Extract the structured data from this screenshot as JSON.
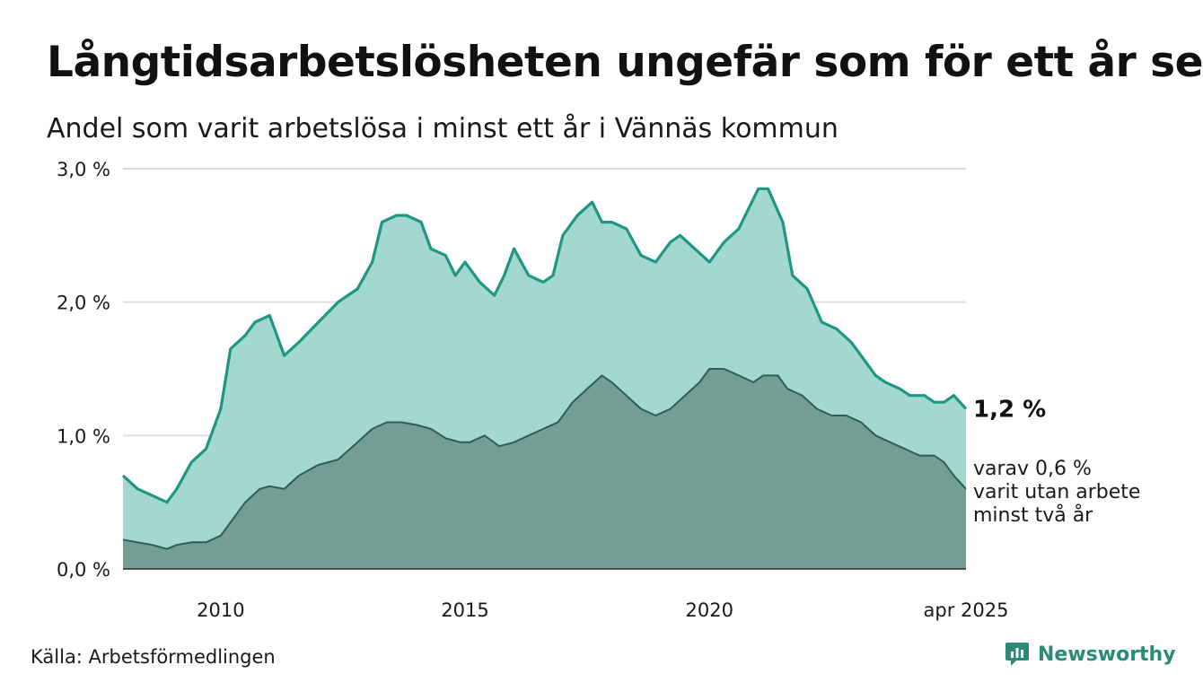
{
  "title": "Långtidsarbetslösheten ungefär som för ett år sen",
  "subtitle": "Andel som varit arbetslösa i minst ett år i Vännäs kommun",
  "source": "Källa: Arbetsförmedlingen",
  "brand": "Newsworthy",
  "brand_icon": "bar-chart-speech-bubble-icon",
  "colors": {
    "series1_line": "#1f9683",
    "series1_fill": "#a3d8d0",
    "series2_line": "#2e5e54",
    "series2_fill": "#729e96",
    "grid": "#dddddd",
    "brand": "#2d8a78"
  },
  "chart_data": {
    "type": "area",
    "ylim": [
      0,
      3.0
    ],
    "yticks": [
      {
        "value": 0,
        "label": "0,0 %"
      },
      {
        "value": 1,
        "label": "1,0 %"
      },
      {
        "value": 2,
        "label": "2,0 %"
      },
      {
        "value": 3,
        "label": "3,0 %"
      }
    ],
    "xlim": [
      2008.0,
      2025.25
    ],
    "xticks": [
      {
        "value": 2010,
        "label": "2010"
      },
      {
        "value": 2015,
        "label": "2015"
      },
      {
        "value": 2020,
        "label": "2020"
      },
      {
        "value": 2025.25,
        "label": "apr 2025"
      }
    ],
    "grid": true,
    "end_labels": {
      "series1": "1,2 %",
      "series2": [
        "varav 0,6 %",
        "varit utan arbete",
        "minst två år"
      ]
    },
    "series": [
      {
        "x": [
          2008.0,
          2008.3,
          2008.6,
          2008.9,
          2009.1,
          2009.4,
          2009.7,
          2010.0,
          2010.2,
          2010.5,
          2010.7,
          2011.0,
          2011.3,
          2011.6,
          2012.0,
          2012.4,
          2012.8,
          2013.1,
          2013.3,
          2013.6,
          2013.8,
          2014.1,
          2014.3,
          2014.6,
          2014.8,
          2015.0,
          2015.3,
          2015.6,
          2015.8,
          2016.0,
          2016.3,
          2016.6,
          2016.8,
          2017.0,
          2017.3,
          2017.6,
          2017.8,
          2018.0,
          2018.3,
          2018.6,
          2018.9,
          2019.2,
          2019.4,
          2019.7,
          2020.0,
          2020.3,
          2020.6,
          2020.8,
          2021.0,
          2021.2,
          2021.5,
          2021.7,
          2022.0,
          2022.3,
          2022.6,
          2022.9,
          2023.1,
          2023.4,
          2023.6,
          2023.9,
          2024.1,
          2024.4,
          2024.6,
          2024.8,
          2025.0,
          2025.25
        ],
        "values": [
          0.7,
          0.6,
          0.55,
          0.5,
          0.6,
          0.8,
          0.9,
          1.2,
          1.65,
          1.75,
          1.85,
          1.9,
          1.6,
          1.7,
          1.85,
          2.0,
          2.1,
          2.3,
          2.6,
          2.65,
          2.65,
          2.6,
          2.4,
          2.35,
          2.2,
          2.3,
          2.15,
          2.05,
          2.2,
          2.4,
          2.2,
          2.15,
          2.2,
          2.5,
          2.65,
          2.75,
          2.6,
          2.6,
          2.55,
          2.35,
          2.3,
          2.45,
          2.5,
          2.4,
          2.3,
          2.45,
          2.55,
          2.7,
          2.85,
          2.85,
          2.6,
          2.2,
          2.1,
          1.85,
          1.8,
          1.7,
          1.6,
          1.45,
          1.4,
          1.35,
          1.3,
          1.3,
          1.25,
          1.25,
          1.3,
          1.2
        ]
      },
      {
        "x": [
          2008.0,
          2008.3,
          2008.6,
          2008.9,
          2009.1,
          2009.4,
          2009.7,
          2010.0,
          2010.2,
          2010.5,
          2010.8,
          2011.0,
          2011.3,
          2011.6,
          2012.0,
          2012.4,
          2012.8,
          2013.1,
          2013.4,
          2013.7,
          2014.0,
          2014.3,
          2014.6,
          2014.9,
          2015.1,
          2015.4,
          2015.7,
          2016.0,
          2016.3,
          2016.6,
          2016.9,
          2017.2,
          2017.5,
          2017.8,
          2018.0,
          2018.3,
          2018.6,
          2018.9,
          2019.2,
          2019.5,
          2019.8,
          2020.0,
          2020.3,
          2020.6,
          2020.9,
          2021.1,
          2021.4,
          2021.6,
          2021.9,
          2022.2,
          2022.5,
          2022.8,
          2023.1,
          2023.4,
          2023.7,
          2024.0,
          2024.3,
          2024.6,
          2024.8,
          2025.0,
          2025.25
        ],
        "values": [
          0.22,
          0.2,
          0.18,
          0.15,
          0.18,
          0.2,
          0.2,
          0.25,
          0.35,
          0.5,
          0.6,
          0.62,
          0.6,
          0.7,
          0.78,
          0.82,
          0.95,
          1.05,
          1.1,
          1.1,
          1.08,
          1.05,
          0.98,
          0.95,
          0.95,
          1.0,
          0.92,
          0.95,
          1.0,
          1.05,
          1.1,
          1.25,
          1.35,
          1.45,
          1.4,
          1.3,
          1.2,
          1.15,
          1.2,
          1.3,
          1.4,
          1.5,
          1.5,
          1.45,
          1.4,
          1.45,
          1.45,
          1.35,
          1.3,
          1.2,
          1.15,
          1.15,
          1.1,
          1.0,
          0.95,
          0.9,
          0.85,
          0.85,
          0.8,
          0.7,
          0.6
        ]
      }
    ]
  }
}
